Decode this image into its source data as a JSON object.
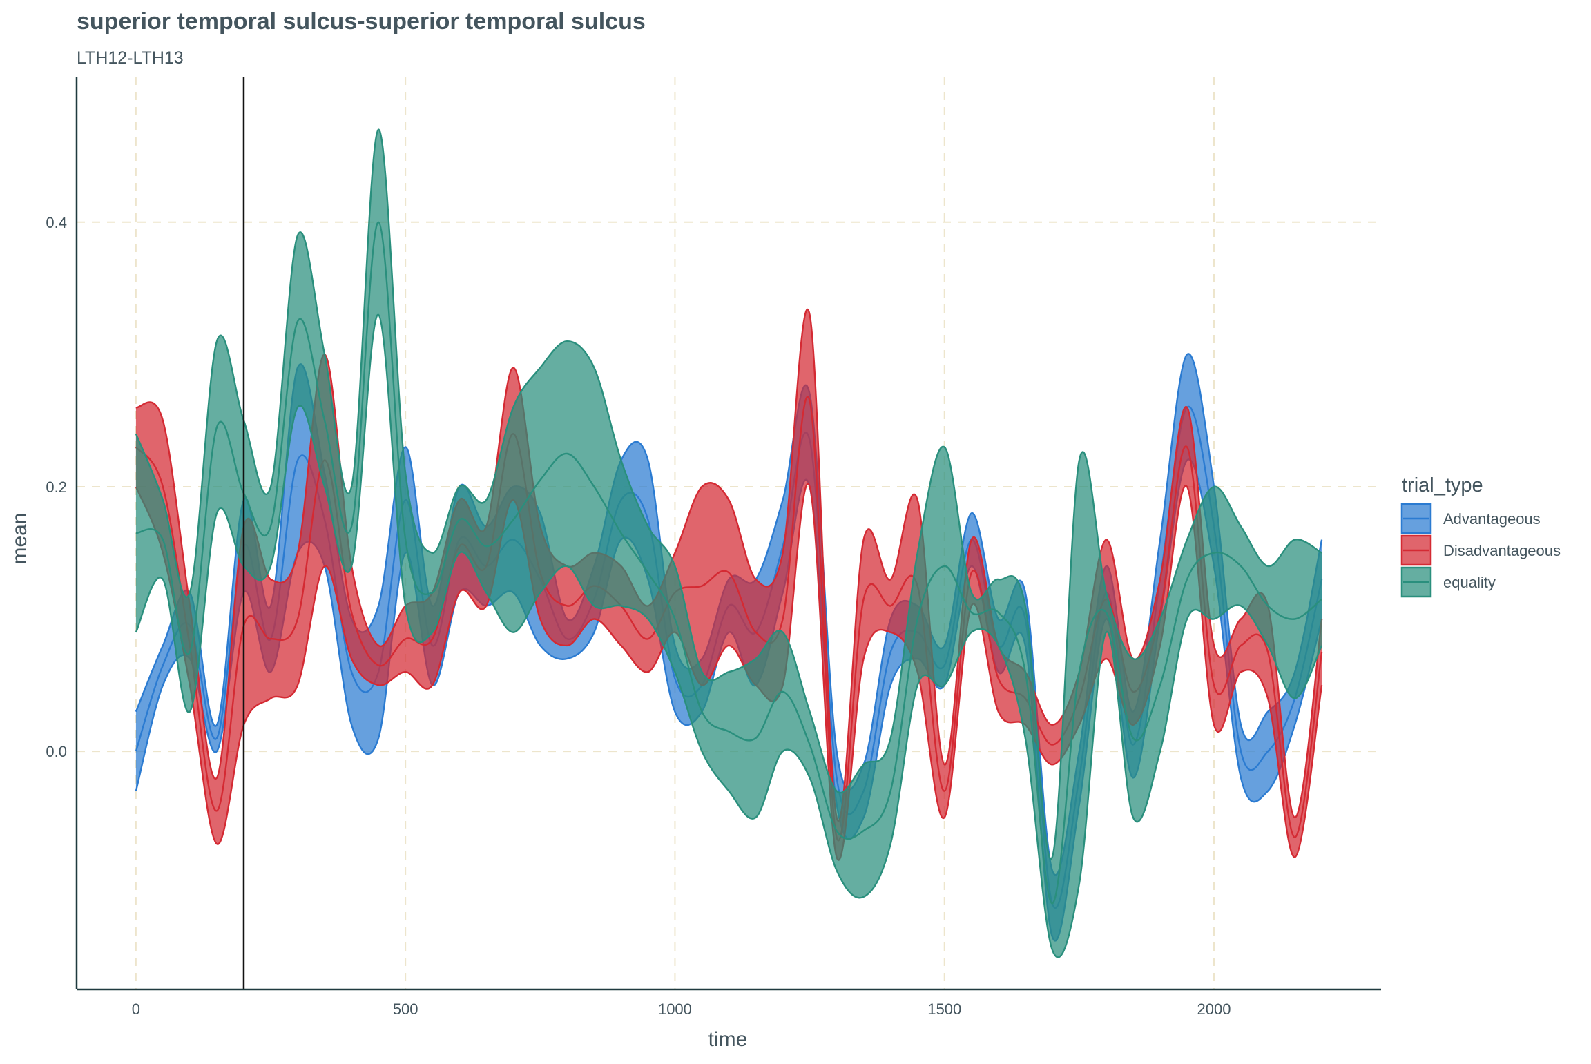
{
  "chart_data": {
    "type": "area",
    "title": "superior temporal sulcus-superior temporal sulcus",
    "subtitle": "LTH12-LTH13",
    "xlabel": "time",
    "ylabel": "mean",
    "xlim": [
      -110,
      2310
    ],
    "ylim": [
      -0.18,
      0.51
    ],
    "x_ticks": [
      0,
      500,
      1000,
      1500,
      2000
    ],
    "x_tick_labels": [
      "0",
      "500",
      "1000",
      "1500",
      "2000"
    ],
    "y_ticks": [
      0.0,
      0.2,
      0.4
    ],
    "y_tick_labels": [
      "0.0",
      "0.2",
      "0.4"
    ],
    "grid": true,
    "vline_x": 200,
    "legend": {
      "title": "trial_type",
      "position": "right"
    },
    "x": [
      0,
      50,
      100,
      150,
      200,
      250,
      300,
      350,
      400,
      450,
      500,
      550,
      600,
      650,
      700,
      750,
      800,
      850,
      900,
      950,
      1000,
      1050,
      1100,
      1150,
      1200,
      1250,
      1300,
      1350,
      1400,
      1450,
      1500,
      1550,
      1600,
      1650,
      1700,
      1750,
      1800,
      1850,
      1900,
      1950,
      2000,
      2050,
      2100,
      2150,
      2200
    ],
    "series": [
      {
        "name": "Advantageous",
        "color": "#2b7bd1",
        "lower": [
          -0.03,
          0.05,
          0.07,
          0.0,
          0.12,
          0.06,
          0.15,
          0.14,
          0.02,
          0.01,
          0.15,
          0.05,
          0.12,
          0.11,
          0.12,
          0.08,
          0.07,
          0.09,
          0.16,
          0.13,
          0.03,
          0.03,
          0.09,
          0.05,
          0.12,
          0.2,
          -0.04,
          -0.05,
          0.05,
          0.07,
          0.05,
          0.14,
          0.06,
          0.08,
          -0.14,
          -0.04,
          0.1,
          -0.02,
          0.1,
          0.22,
          0.14,
          -0.02,
          -0.03,
          0.02,
          0.1
        ],
        "upper": [
          0.03,
          0.08,
          0.12,
          0.02,
          0.19,
          0.11,
          0.29,
          0.21,
          0.1,
          0.11,
          0.23,
          0.11,
          0.2,
          0.17,
          0.2,
          0.18,
          0.1,
          0.14,
          0.22,
          0.22,
          0.08,
          0.07,
          0.13,
          0.13,
          0.19,
          0.27,
          0.0,
          -0.01,
          0.1,
          0.11,
          0.08,
          0.18,
          0.1,
          0.12,
          -0.09,
          0.0,
          0.14,
          0.03,
          0.16,
          0.3,
          0.2,
          0.02,
          0.03,
          0.06,
          0.16
        ],
        "mean": [
          0.0,
          0.065,
          0.095,
          0.01,
          0.155,
          0.085,
          0.22,
          0.175,
          0.06,
          0.06,
          0.19,
          0.08,
          0.16,
          0.14,
          0.16,
          0.13,
          0.085,
          0.115,
          0.19,
          0.175,
          0.055,
          0.05,
          0.11,
          0.09,
          0.155,
          0.235,
          -0.02,
          -0.03,
          0.075,
          0.09,
          0.065,
          0.16,
          0.08,
          0.1,
          -0.115,
          -0.02,
          0.12,
          0.005,
          0.13,
          0.26,
          0.17,
          0.0,
          0.0,
          0.04,
          0.13
        ]
      },
      {
        "name": "Disadvantageous",
        "color": "#d42a33",
        "lower": [
          0.2,
          0.15,
          0.05,
          -0.07,
          0.02,
          0.04,
          0.05,
          0.14,
          0.07,
          0.05,
          0.06,
          0.05,
          0.12,
          0.11,
          0.19,
          0.1,
          0.08,
          0.1,
          0.08,
          0.06,
          0.09,
          0.05,
          0.08,
          0.05,
          0.05,
          0.2,
          -0.08,
          0.07,
          0.09,
          0.06,
          -0.05,
          0.11,
          0.03,
          0.02,
          -0.01,
          0.02,
          0.07,
          0.02,
          0.08,
          0.2,
          0.02,
          0.06,
          0.04,
          -0.08,
          0.05
        ],
        "upper": [
          0.26,
          0.25,
          0.11,
          -0.02,
          0.17,
          0.13,
          0.15,
          0.3,
          0.14,
          0.08,
          0.11,
          0.12,
          0.19,
          0.17,
          0.29,
          0.17,
          0.14,
          0.15,
          0.14,
          0.11,
          0.15,
          0.2,
          0.19,
          0.13,
          0.15,
          0.33,
          -0.05,
          0.16,
          0.13,
          0.19,
          -0.01,
          0.16,
          0.08,
          0.06,
          0.02,
          0.06,
          0.16,
          0.07,
          0.13,
          0.26,
          0.08,
          0.1,
          0.11,
          -0.05,
          0.1
        ],
        "mean": [
          0.23,
          0.2,
          0.08,
          -0.045,
          0.095,
          0.085,
          0.1,
          0.22,
          0.105,
          0.065,
          0.085,
          0.085,
          0.155,
          0.14,
          0.24,
          0.135,
          0.11,
          0.125,
          0.11,
          0.085,
          0.12,
          0.125,
          0.135,
          0.09,
          0.1,
          0.265,
          -0.065,
          0.115,
          0.11,
          0.125,
          -0.03,
          0.135,
          0.055,
          0.04,
          0.005,
          0.04,
          0.115,
          0.045,
          0.105,
          0.23,
          0.05,
          0.08,
          0.075,
          -0.065,
          0.075
        ]
      },
      {
        "name": "equality",
        "color": "#2a8f7d",
        "lower": [
          0.09,
          0.13,
          0.03,
          0.18,
          0.14,
          0.14,
          0.26,
          0.2,
          0.14,
          0.33,
          0.11,
          0.09,
          0.15,
          0.12,
          0.09,
          0.12,
          0.14,
          0.11,
          0.11,
          0.1,
          0.06,
          0.0,
          -0.03,
          -0.05,
          0.0,
          -0.02,
          -0.09,
          -0.11,
          -0.07,
          0.05,
          0.05,
          0.09,
          0.08,
          0.01,
          -0.15,
          -0.1,
          0.09,
          -0.05,
          0.0,
          0.1,
          0.1,
          0.11,
          0.08,
          0.04,
          0.08
        ],
        "upper": [
          0.24,
          0.19,
          0.12,
          0.31,
          0.25,
          0.2,
          0.39,
          0.3,
          0.2,
          0.47,
          0.21,
          0.15,
          0.2,
          0.19,
          0.26,
          0.29,
          0.31,
          0.29,
          0.22,
          0.17,
          0.14,
          0.06,
          0.06,
          0.07,
          0.09,
          0.03,
          -0.03,
          -0.01,
          0.01,
          0.15,
          0.23,
          0.12,
          0.13,
          0.11,
          -0.08,
          0.22,
          0.12,
          0.07,
          0.1,
          0.16,
          0.2,
          0.17,
          0.14,
          0.16,
          0.15
        ],
        "mean": [
          0.165,
          0.16,
          0.075,
          0.245,
          0.195,
          0.17,
          0.325,
          0.25,
          0.17,
          0.4,
          0.16,
          0.12,
          0.175,
          0.155,
          0.175,
          0.205,
          0.225,
          0.2,
          0.165,
          0.135,
          0.1,
          0.03,
          0.015,
          0.01,
          0.045,
          0.005,
          -0.06,
          -0.06,
          -0.03,
          0.1,
          0.14,
          0.105,
          0.105,
          0.06,
          -0.115,
          0.06,
          0.105,
          0.01,
          0.05,
          0.13,
          0.15,
          0.14,
          0.11,
          0.1,
          0.115
        ]
      }
    ]
  }
}
